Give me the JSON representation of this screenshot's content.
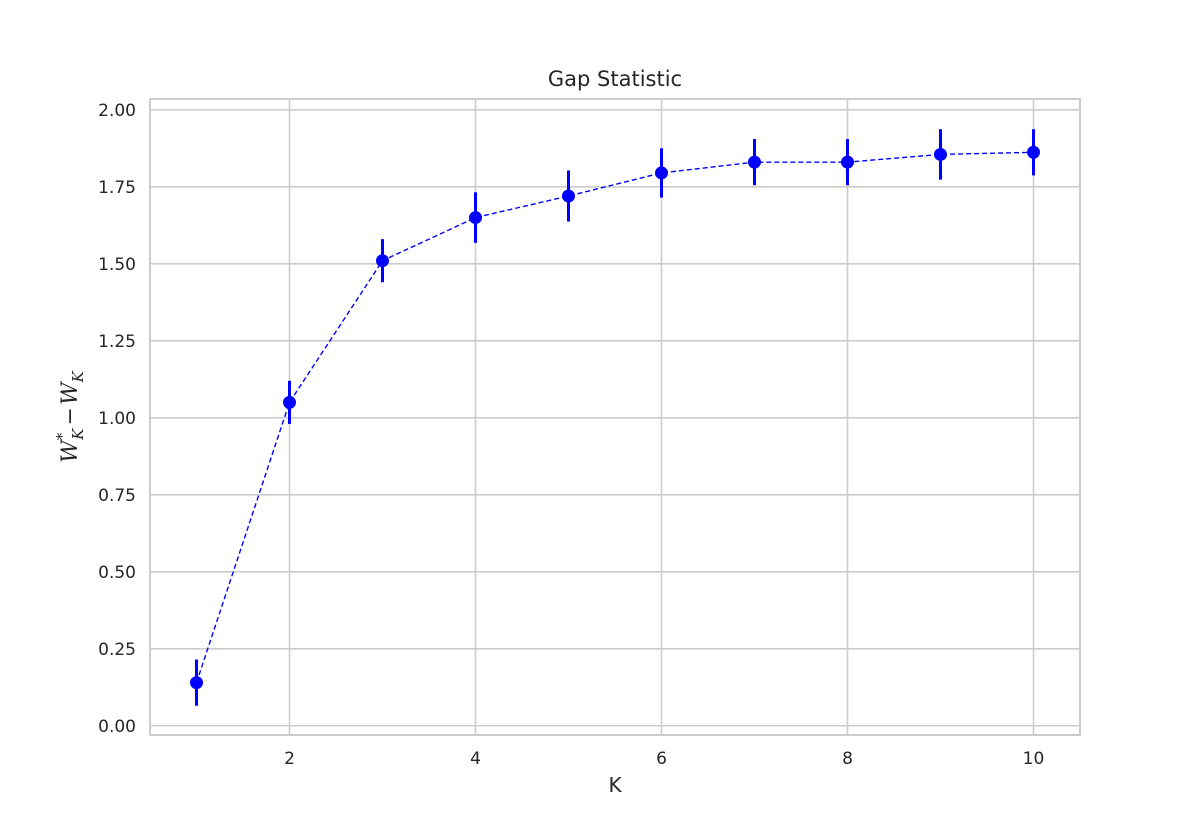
{
  "chart_data": {
    "type": "line",
    "title": "Gap Statistic",
    "xlabel": "K",
    "ylabel": {
      "base": "W",
      "sub": "K",
      "star": "*",
      "op": "−"
    },
    "x": [
      1,
      2,
      3,
      4,
      5,
      6,
      7,
      8,
      9,
      10
    ],
    "series": [
      {
        "values": [
          0.14,
          1.05,
          1.51,
          1.65,
          1.72,
          1.795,
          1.83,
          1.83,
          1.855,
          1.862
        ],
        "errors": [
          0.075,
          0.07,
          0.07,
          0.082,
          0.083,
          0.08,
          0.075,
          0.075,
          0.082,
          0.075
        ],
        "color": "#0000ff",
        "linestyle": "dashed",
        "marker": "circle"
      }
    ],
    "xlim": [
      0.5,
      10.5
    ],
    "ylim": [
      -0.03,
      2.035
    ],
    "xticks": [
      2,
      4,
      6,
      8,
      10
    ],
    "xtick_labels": [
      "2",
      "4",
      "6",
      "8",
      "10"
    ],
    "yticks": [
      0,
      0.25,
      0.5,
      0.75,
      1.0,
      1.25,
      1.5,
      1.75,
      2.0
    ],
    "ytick_labels": [
      "0.00",
      "0.25",
      "0.50",
      "0.75",
      "1.00",
      "1.25",
      "1.50",
      "1.75",
      "2.00"
    ],
    "grid": true,
    "legend": false
  }
}
